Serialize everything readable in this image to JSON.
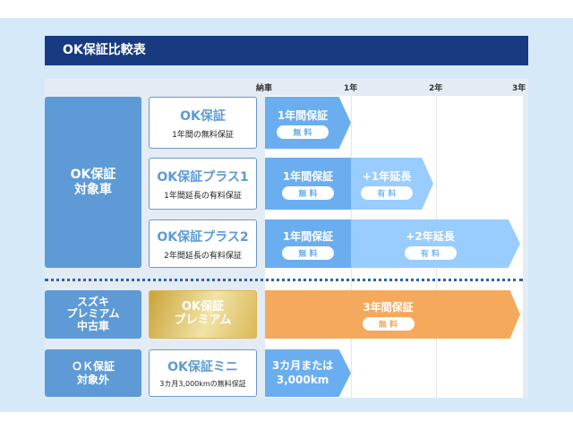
{
  "title": "OK保証比較表",
  "timeline": {
    "labels": [
      "納車",
      "1年",
      "2年",
      "3年"
    ]
  },
  "categories": [
    {
      "label": "OK保証\n対象車"
    },
    {
      "label": "スズキ\nプレミアム\n中古車"
    },
    {
      "label": "ＯＫ保証\n対象外"
    }
  ],
  "plans": [
    {
      "name": "OK保証",
      "desc": "1年間の無料保証"
    },
    {
      "name": "OK保証プラス1",
      "desc": "1年間延長の有料保証"
    },
    {
      "name": "OK保証プラス2",
      "desc": "2年間延長の有料保証"
    },
    {
      "name": "OK保証\nプレミアム",
      "desc": ""
    },
    {
      "name": "OK保証ミニ",
      "desc": "3カ月3,000kmの無料保証"
    }
  ],
  "bars": {
    "base": {
      "label": "1年間保証",
      "badge": "無 料"
    },
    "ext1": {
      "label": "+1年延長",
      "badge": "有 料"
    },
    "ext2": {
      "label": "+2年延長",
      "badge": "有 料"
    },
    "premium": {
      "label": "3年間保証",
      "badge": "無 料"
    },
    "mini": {
      "label": "3カ月または\n3,000km"
    }
  },
  "colors": {
    "navy": "#173a80",
    "category": "#5d9ad6",
    "free": "#6aaef0",
    "paid": "#99ccff",
    "premium": "#f5a95c"
  }
}
